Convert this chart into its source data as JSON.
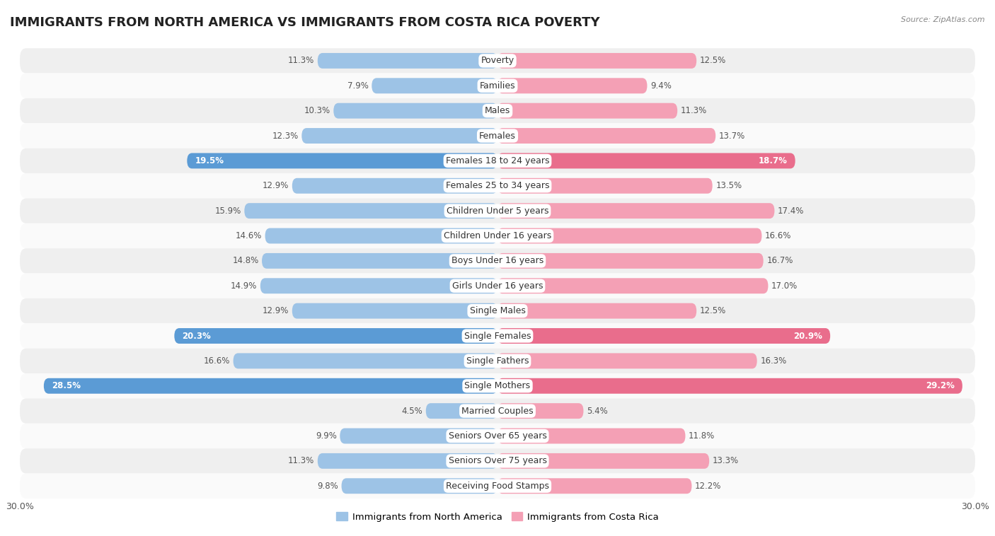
{
  "title": "IMMIGRANTS FROM NORTH AMERICA VS IMMIGRANTS FROM COSTA RICA POVERTY",
  "source": "Source: ZipAtlas.com",
  "categories": [
    "Poverty",
    "Families",
    "Males",
    "Females",
    "Females 18 to 24 years",
    "Females 25 to 34 years",
    "Children Under 5 years",
    "Children Under 16 years",
    "Boys Under 16 years",
    "Girls Under 16 years",
    "Single Males",
    "Single Females",
    "Single Fathers",
    "Single Mothers",
    "Married Couples",
    "Seniors Over 65 years",
    "Seniors Over 75 years",
    "Receiving Food Stamps"
  ],
  "left_values": [
    11.3,
    7.9,
    10.3,
    12.3,
    19.5,
    12.9,
    15.9,
    14.6,
    14.8,
    14.9,
    12.9,
    20.3,
    16.6,
    28.5,
    4.5,
    9.9,
    11.3,
    9.8
  ],
  "right_values": [
    12.5,
    9.4,
    11.3,
    13.7,
    18.7,
    13.5,
    17.4,
    16.6,
    16.7,
    17.0,
    12.5,
    20.9,
    16.3,
    29.2,
    5.4,
    11.8,
    13.3,
    12.2
  ],
  "left_color": "#9dc3e6",
  "right_color": "#f4a0b5",
  "left_label": "Immigrants from North America",
  "right_label": "Immigrants from Costa Rica",
  "highlight_left_color": "#5b9bd5",
  "highlight_right_color": "#e96d8c",
  "highlight_rows": [
    4,
    11,
    13
  ],
  "axis_max": 30.0,
  "bar_height": 0.62,
  "row_bg_even": "#efefef",
  "row_bg_odd": "#fafafa",
  "title_fontsize": 13,
  "label_fontsize": 9,
  "value_fontsize": 8.5
}
